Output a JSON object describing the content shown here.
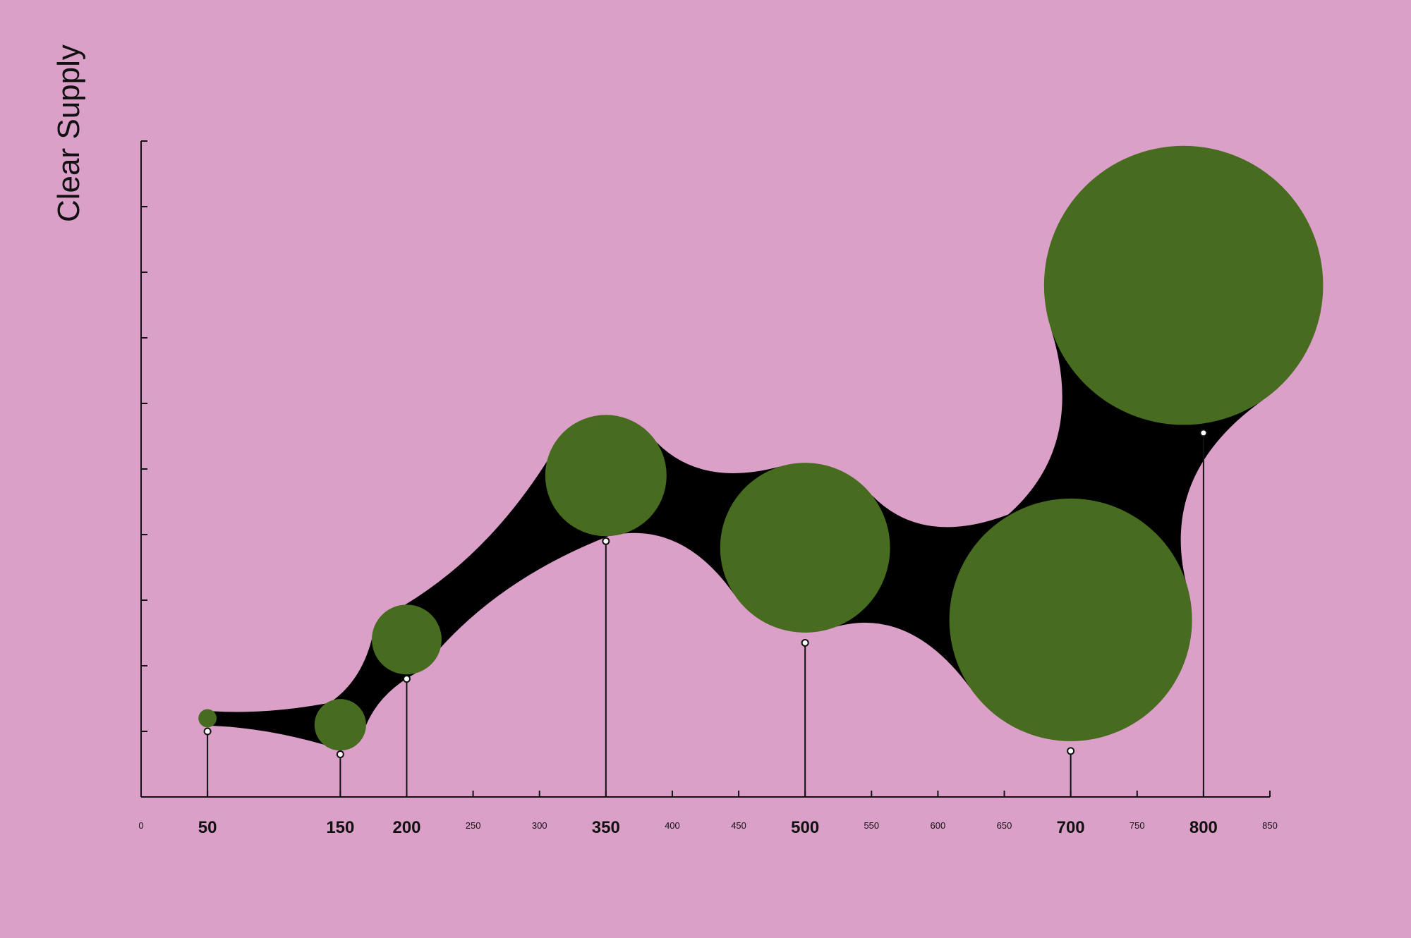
{
  "chart_data": {
    "type": "bubble",
    "title": "",
    "xlabel": "",
    "ylabel": "Clear Supply",
    "xlim": [
      0,
      850
    ],
    "ylim": [
      0,
      10
    ],
    "grid": false,
    "legend": "none",
    "colors": {
      "background": "#dba0c8",
      "bubble": "#476b1f",
      "connector": "#000000",
      "axis": "#111111"
    },
    "x_ticks": [
      0,
      50,
      150,
      200,
      250,
      300,
      350,
      400,
      450,
      500,
      550,
      600,
      650,
      700,
      750,
      800,
      850
    ],
    "x_ticks_major": [
      50,
      150,
      200,
      350,
      500,
      700,
      800
    ],
    "y_tick_count": 10,
    "points": [
      {
        "x": 50,
        "y": 1.0,
        "bubble_x": 50,
        "bubble_y": 1.2,
        "size": 0.6
      },
      {
        "x": 150,
        "y": 0.65,
        "bubble_x": 150,
        "bubble_y": 1.1,
        "size": 1.7
      },
      {
        "x": 200,
        "y": 1.8,
        "bubble_x": 200,
        "bubble_y": 2.4,
        "size": 2.3
      },
      {
        "x": 350,
        "y": 3.9,
        "bubble_x": 350,
        "bubble_y": 4.9,
        "size": 4.0
      },
      {
        "x": 500,
        "y": 2.35,
        "bubble_x": 500,
        "bubble_y": 3.8,
        "size": 5.6
      },
      {
        "x": 700,
        "y": 0.7,
        "bubble_x": 700,
        "bubble_y": 2.7,
        "size": 8.0
      },
      {
        "x": 800,
        "y": 5.55,
        "bubble_x": 785,
        "bubble_y": 7.8,
        "size": 9.2
      }
    ]
  }
}
